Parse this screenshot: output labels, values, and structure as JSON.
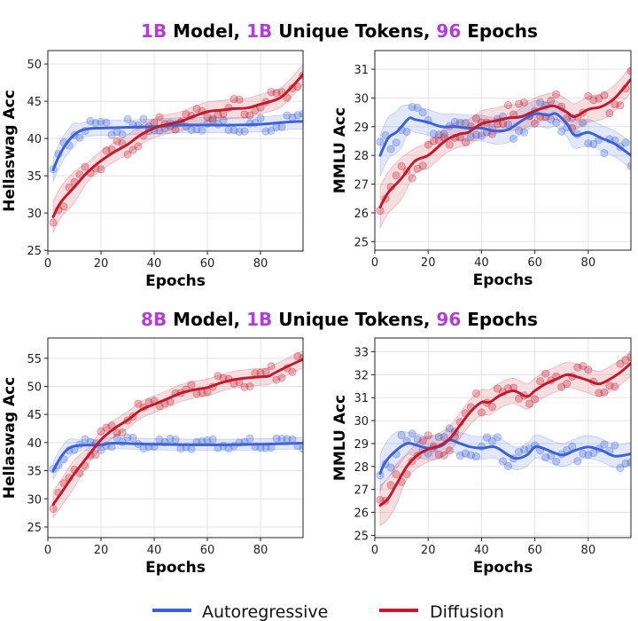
{
  "colors": {
    "autoregressive": "#3b63d6",
    "diffusion": "#c01b2c",
    "highlight": "#b03fd3",
    "text": "#000000"
  },
  "legend": {
    "placement": "bottom-center",
    "items": [
      {
        "label": "Autoregressive",
        "color": "#3b63d6"
      },
      {
        "label": "Diffusion",
        "color": "#c01b2c"
      }
    ]
  },
  "rows": [
    {
      "title": [
        {
          "text": "1B",
          "highlight": true
        },
        {
          "text": " Model, ",
          "highlight": false
        },
        {
          "text": "1B",
          "highlight": true
        },
        {
          "text": " Unique Tokens, ",
          "highlight": false
        },
        {
          "text": "96",
          "highlight": true
        },
        {
          "text": " Epochs",
          "highlight": false
        }
      ]
    },
    {
      "title": [
        {
          "text": "8B",
          "highlight": true
        },
        {
          "text": " Model, ",
          "highlight": false
        },
        {
          "text": "1B",
          "highlight": true
        },
        {
          "text": " Unique Tokens, ",
          "highlight": false
        },
        {
          "text": "96",
          "highlight": true
        },
        {
          "text": " Epochs",
          "highlight": false
        }
      ]
    }
  ],
  "chart_data": [
    {
      "type": "line",
      "xlabel": "Epochs",
      "ylabel": "Hellaswag Acc",
      "xlim": [
        0,
        96
      ],
      "ylim": [
        24.9,
        51.8
      ],
      "xticks": [
        0,
        20,
        40,
        60,
        80
      ],
      "yticks": [
        25,
        30,
        35,
        40,
        45,
        50
      ],
      "grid": true,
      "series": [
        {
          "name": "Autoregressive",
          "band": 1.0,
          "x": [
            2,
            4,
            6,
            8,
            10,
            12,
            15,
            20,
            30,
            40,
            50,
            60,
            70,
            80,
            90,
            96
          ],
          "y": [
            35.8,
            37.5,
            38.8,
            39.8,
            40.5,
            41,
            41.3,
            41.4,
            41.5,
            41.6,
            41.8,
            41.8,
            41.8,
            41.9,
            42.2,
            42.3
          ]
        },
        {
          "name": "Diffusion",
          "band": 1.3,
          "x": [
            2,
            5,
            10,
            15,
            20,
            25,
            30,
            35,
            40,
            45,
            50,
            55,
            60,
            65,
            70,
            75,
            80,
            85,
            88,
            92,
            96
          ],
          "y": [
            29.5,
            31.5,
            33.5,
            35.5,
            37,
            38.2,
            39.2,
            40.5,
            41.4,
            41.9,
            42.3,
            43,
            43.6,
            43.8,
            44,
            44.1,
            44.6,
            45.1,
            45.6,
            47,
            48.6
          ]
        }
      ]
    },
    {
      "type": "line",
      "xlabel": "Epochs",
      "ylabel": "MMLU Acc",
      "xlim": [
        0,
        96
      ],
      "ylim": [
        24.7,
        31.65
      ],
      "xticks": [
        0,
        20,
        40,
        60,
        80
      ],
      "yticks": [
        25,
        26,
        27,
        28,
        29,
        30,
        31
      ],
      "grid": true,
      "series": [
        {
          "name": "Autoregressive",
          "band": 0.45,
          "x": [
            2,
            5,
            8,
            10,
            13,
            15,
            20,
            25,
            30,
            35,
            40,
            45,
            50,
            55,
            60,
            65,
            68,
            72,
            75,
            80,
            85,
            90,
            96
          ],
          "y": [
            28,
            28.6,
            28.8,
            29,
            29.3,
            29.25,
            29.15,
            29.0,
            29.0,
            28.95,
            28.95,
            28.85,
            28.9,
            29.2,
            29.45,
            29.4,
            29.45,
            29.1,
            28.7,
            28.8,
            28.6,
            28.4,
            28.0
          ]
        },
        {
          "name": "Diffusion",
          "band": 0.45,
          "x": [
            2,
            5,
            10,
            15,
            20,
            25,
            28,
            32,
            35,
            40,
            45,
            50,
            55,
            60,
            65,
            68,
            72,
            75,
            80,
            85,
            90,
            96
          ],
          "y": [
            26.2,
            26.7,
            27.2,
            27.8,
            28.0,
            28.4,
            28.6,
            28.75,
            28.8,
            29.1,
            29.2,
            29.3,
            29.35,
            29.55,
            29.7,
            29.7,
            29.5,
            29.35,
            29.6,
            29.7,
            30.0,
            30.65
          ]
        }
      ]
    },
    {
      "type": "line",
      "xlabel": "Epochs",
      "ylabel": "Hellaswag Acc",
      "xlim": [
        0,
        96
      ],
      "ylim": [
        23.1,
        58.6
      ],
      "xticks": [
        0,
        20,
        40,
        60,
        80
      ],
      "yticks": [
        25,
        30,
        35,
        40,
        45,
        50,
        55
      ],
      "grid": true,
      "series": [
        {
          "name": "Autoregressive",
          "band": 1.0,
          "x": [
            2,
            5,
            8,
            12,
            20,
            25,
            40,
            60,
            80,
            96
          ],
          "y": [
            35,
            37.5,
            39,
            39.5,
            39.6,
            39.9,
            39.7,
            39.6,
            39.7,
            39.9
          ]
        },
        {
          "name": "Diffusion",
          "band": 1.5,
          "x": [
            2,
            5,
            10,
            15,
            20,
            25,
            30,
            35,
            40,
            45,
            50,
            55,
            60,
            65,
            70,
            75,
            80,
            83,
            85,
            90,
            96
          ],
          "y": [
            29,
            31,
            34.5,
            37.5,
            40.5,
            42.5,
            44,
            45.8,
            46.8,
            47.8,
            48.8,
            49.4,
            49.8,
            50.6,
            51.2,
            51.5,
            51.7,
            51.8,
            52.3,
            53.5,
            54.8
          ]
        }
      ]
    },
    {
      "type": "line",
      "xlabel": "Epochs",
      "ylabel": "MMLU Acc",
      "xlim": [
        0,
        96
      ],
      "ylim": [
        24.9,
        33.6
      ],
      "xticks": [
        0,
        20,
        40,
        60,
        80
      ],
      "yticks": [
        25,
        26,
        27,
        28,
        29,
        30,
        31,
        32,
        33
      ],
      "grid": true,
      "series": [
        {
          "name": "Autoregressive",
          "band": 0.5,
          "x": [
            2,
            4,
            8,
            12,
            15,
            20,
            25,
            28,
            32,
            36,
            40,
            45,
            50,
            53,
            57,
            60,
            63,
            70,
            75,
            80,
            85,
            90,
            96
          ],
          "y": [
            27.7,
            28.2,
            28.7,
            29.0,
            28.95,
            28.8,
            28.9,
            29.15,
            29.0,
            28.85,
            28.8,
            28.85,
            28.5,
            28.35,
            28.5,
            28.85,
            28.8,
            28.5,
            28.7,
            28.85,
            28.7,
            28.45,
            28.55
          ]
        },
        {
          "name": "Diffusion",
          "band": 0.55,
          "x": [
            2,
            5,
            8,
            12,
            16,
            20,
            24,
            28,
            32,
            36,
            40,
            43,
            47,
            52,
            57,
            60,
            64,
            68,
            72,
            76,
            80,
            84,
            88,
            92,
            96
          ],
          "y": [
            26.3,
            26.6,
            27.2,
            28,
            28.5,
            28.75,
            28.9,
            29.2,
            29.8,
            30.4,
            30.8,
            30.8,
            31.1,
            31.3,
            31.05,
            31.3,
            31.6,
            31.8,
            32.0,
            31.9,
            31.75,
            31.6,
            31.8,
            32.1,
            32.5
          ]
        }
      ]
    }
  ]
}
